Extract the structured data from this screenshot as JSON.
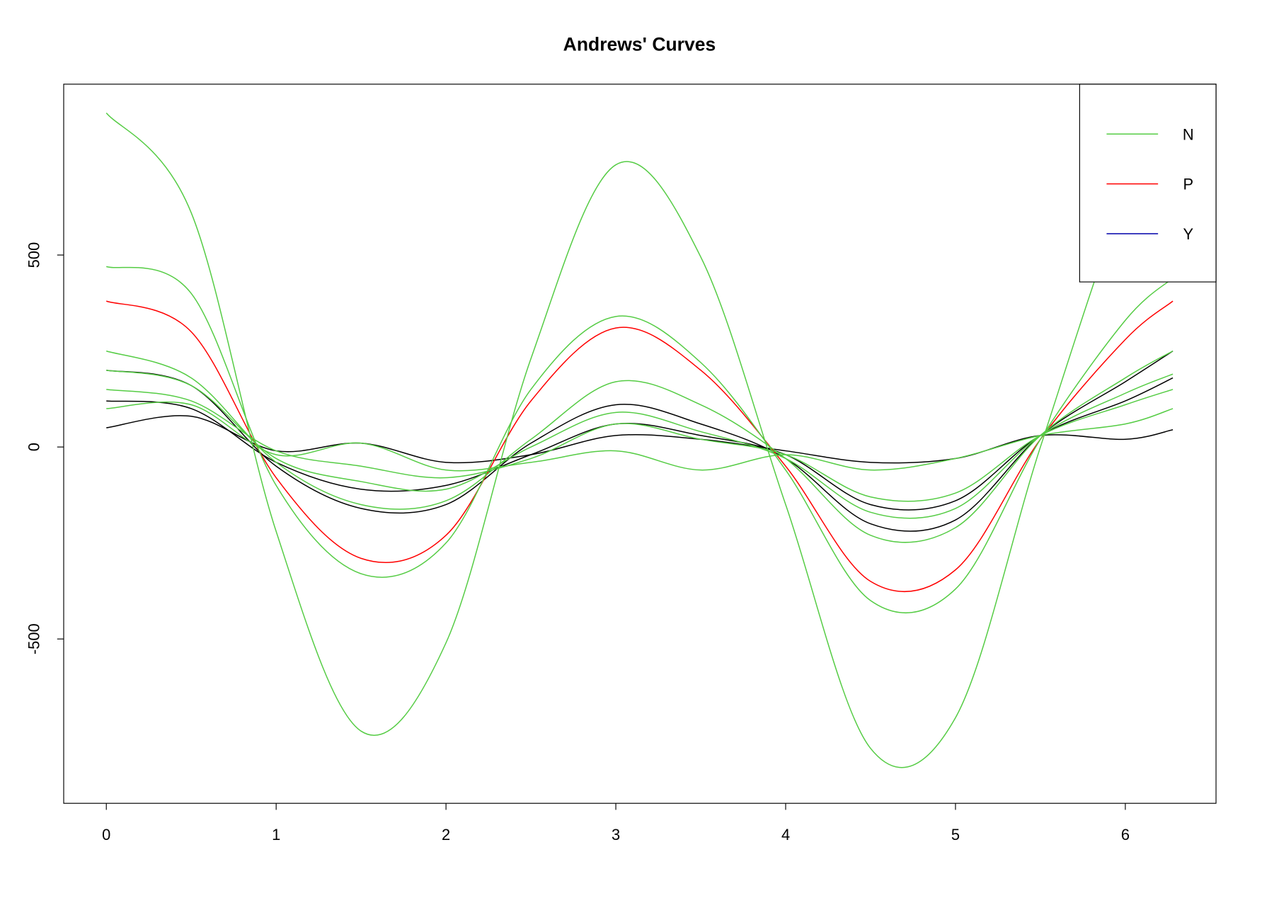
{
  "chart_data": {
    "type": "line",
    "title": "Andrews' Curves",
    "x": [
      0,
      0.5,
      1,
      1.5,
      2,
      2.5,
      3,
      3.5,
      4,
      4.5,
      5,
      5.5,
      6,
      6.28
    ],
    "series": [
      {
        "color": "#000000",
        "values": [
          50,
          80,
          -10,
          10,
          -40,
          -20,
          30,
          20,
          -10,
          -40,
          -30,
          30,
          20,
          45
        ]
      },
      {
        "color": "#000000",
        "values": [
          120,
          100,
          -40,
          -110,
          -100,
          -20,
          60,
          30,
          -20,
          -150,
          -140,
          30,
          120,
          180
        ]
      },
      {
        "color": "#000000",
        "values": [
          200,
          160,
          -50,
          -160,
          -150,
          10,
          110,
          60,
          -30,
          -200,
          -190,
          30,
          170,
          250
        ]
      },
      {
        "color": "#ff0000",
        "values": [
          380,
          300,
          -80,
          -290,
          -230,
          120,
          310,
          200,
          -50,
          -350,
          -320,
          20,
          280,
          380
        ]
      },
      {
        "color": "#55cc44",
        "values": [
          870,
          610,
          -220,
          -740,
          -510,
          230,
          735,
          495,
          -150,
          -785,
          -705,
          0,
          650,
          800
        ]
      },
      {
        "color": "#55cc44",
        "values": [
          470,
          400,
          -100,
          -330,
          -250,
          150,
          340,
          220,
          -60,
          -400,
          -370,
          20,
          330,
          440
        ]
      },
      {
        "color": "#55cc44",
        "values": [
          250,
          180,
          -40,
          -150,
          -140,
          20,
          170,
          110,
          -30,
          -230,
          -210,
          30,
          180,
          250
        ]
      },
      {
        "color": "#55cc44",
        "values": [
          200,
          160,
          -30,
          -90,
          -110,
          0,
          90,
          40,
          -30,
          -170,
          -160,
          30,
          140,
          190
        ]
      },
      {
        "color": "#55cc44",
        "values": [
          150,
          120,
          -10,
          -50,
          -80,
          -30,
          60,
          20,
          -20,
          -130,
          -120,
          30,
          110,
          150
        ]
      },
      {
        "color": "#55cc44",
        "values": [
          100,
          110,
          -20,
          10,
          -60,
          -40,
          -10,
          -60,
          -20,
          -60,
          -30,
          30,
          60,
          100
        ]
      }
    ],
    "legend": [
      {
        "name": "N",
        "color": "#55cc44"
      },
      {
        "name": "P",
        "color": "#ff0000"
      },
      {
        "name": "Y",
        "color": "#0000aa"
      }
    ],
    "xlim": [
      -0.251,
      6.534
    ],
    "ylim": [
      -928,
      945
    ],
    "xticks": [
      0,
      1,
      2,
      3,
      4,
      5,
      6
    ],
    "yticks": [
      -500,
      0,
      500
    ]
  }
}
